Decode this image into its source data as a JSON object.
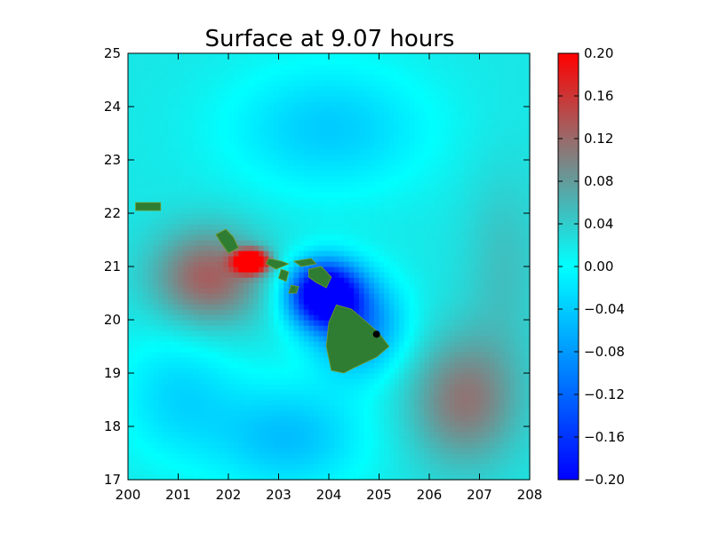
{
  "chart_data": {
    "type": "heatmap",
    "title": "Surface at 9.07 hours",
    "xlabel": "",
    "ylabel": "",
    "xlim": [
      200,
      208
    ],
    "ylim": [
      17,
      25
    ],
    "x_ticks": [
      "200",
      "201",
      "202",
      "203",
      "204",
      "205",
      "206",
      "207",
      "208"
    ],
    "y_ticks": [
      "17",
      "18",
      "19",
      "20",
      "21",
      "22",
      "23",
      "24",
      "25"
    ],
    "colorbar": {
      "range": [
        -0.2,
        0.2
      ],
      "ticks": [
        "0.20",
        "0.16",
        "0.12",
        "0.08",
        "0.04",
        "0.00",
        "−0.04",
        "−0.08",
        "−0.12",
        "−0.16",
        "−0.20"
      ],
      "colors": [
        {
          "v": -0.2,
          "c": "#0000ff"
        },
        {
          "v": -0.1,
          "c": "#0080ff"
        },
        {
          "v": 0.0,
          "c": "#00ffff"
        },
        {
          "v": 0.06,
          "c": "#4ab4b4"
        },
        {
          "v": 0.12,
          "c": "#9a6a6a"
        },
        {
          "v": 0.2,
          "c": "#ff0000"
        }
      ]
    },
    "grid": false,
    "land_color": "#2e7d32",
    "marker": {
      "x": 204.95,
      "y": 19.73,
      "color": "#000000"
    },
    "islands": [
      {
        "name": "",
        "points": [
          [
            200.15,
            22.2
          ],
          [
            200.65,
            22.2
          ],
          [
            200.65,
            22.05
          ],
          [
            200.15,
            22.05
          ]
        ]
      },
      {
        "name": "",
        "points": [
          [
            201.75,
            21.6
          ],
          [
            201.95,
            21.7
          ],
          [
            202.1,
            21.55
          ],
          [
            202.2,
            21.35
          ],
          [
            202.0,
            21.25
          ],
          [
            201.85,
            21.45
          ]
        ]
      },
      {
        "name": "",
        "points": [
          [
            202.8,
            21.15
          ],
          [
            203.05,
            21.1
          ],
          [
            203.2,
            21.05
          ],
          [
            202.95,
            20.95
          ],
          [
            202.75,
            21.05
          ]
        ]
      },
      {
        "name": "",
        "points": [
          [
            203.05,
            20.95
          ],
          [
            203.2,
            20.9
          ],
          [
            203.15,
            20.72
          ],
          [
            203.0,
            20.78
          ]
        ]
      },
      {
        "name": "",
        "points": [
          [
            203.3,
            21.1
          ],
          [
            203.65,
            21.15
          ],
          [
            203.75,
            21.05
          ],
          [
            203.45,
            21.0
          ]
        ]
      },
      {
        "name": "",
        "points": [
          [
            203.6,
            20.95
          ],
          [
            203.85,
            21.0
          ],
          [
            204.05,
            20.8
          ],
          [
            203.95,
            20.6
          ],
          [
            203.75,
            20.7
          ],
          [
            203.6,
            20.8
          ]
        ]
      },
      {
        "name": "",
        "points": [
          [
            203.25,
            20.65
          ],
          [
            203.4,
            20.62
          ],
          [
            203.35,
            20.5
          ],
          [
            203.2,
            20.5
          ]
        ]
      },
      {
        "name": "",
        "points": [
          [
            204.15,
            20.28
          ],
          [
            204.45,
            20.2
          ],
          [
            204.7,
            20.0
          ],
          [
            205.0,
            19.75
          ],
          [
            205.2,
            19.5
          ],
          [
            204.95,
            19.3
          ],
          [
            204.5,
            19.1
          ],
          [
            204.3,
            19.0
          ],
          [
            204.05,
            19.05
          ],
          [
            203.95,
            19.5
          ],
          [
            204.0,
            19.95
          ]
        ]
      }
    ]
  }
}
